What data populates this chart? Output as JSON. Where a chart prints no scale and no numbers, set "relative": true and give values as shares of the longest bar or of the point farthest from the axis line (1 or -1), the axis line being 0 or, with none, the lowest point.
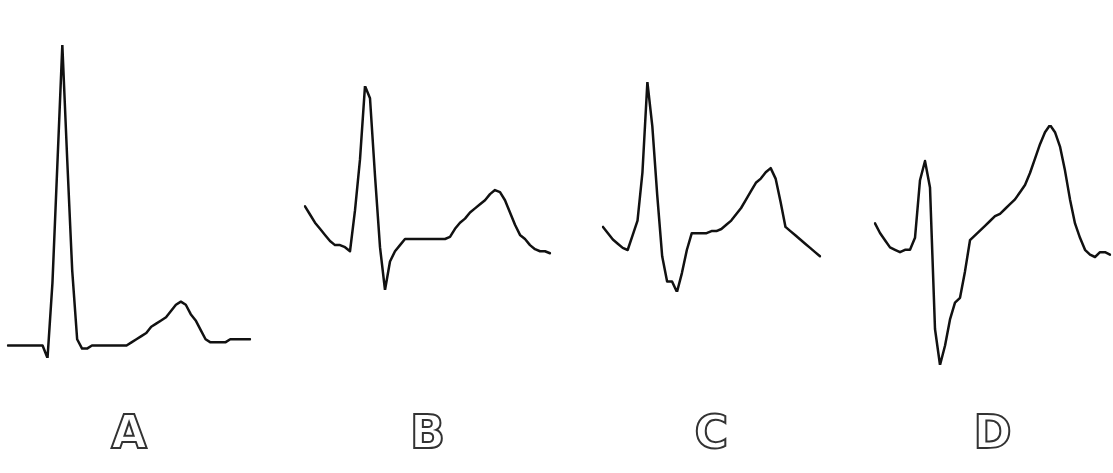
{
  "chart_data": [
    {
      "type": "line",
      "xlabel": "A",
      "relative": true,
      "color": "#111111",
      "categories": [
        null,
        null,
        null,
        null,
        null,
        null,
        null,
        null,
        null,
        null,
        null,
        null,
        null,
        null,
        null,
        null,
        null,
        null,
        null,
        null,
        null,
        null,
        null,
        null,
        null,
        null,
        null,
        null,
        null,
        null,
        null,
        null,
        null,
        null,
        null,
        null,
        null,
        null,
        null,
        null,
        null,
        null,
        null,
        null,
        null,
        null,
        null,
        null,
        null,
        null
      ],
      "values": [
        0.04,
        0.04,
        0.04,
        0.04,
        0.04,
        0.04,
        0.04,
        0.04,
        0,
        0.24,
        0.62,
        1,
        0.63,
        0.28,
        0.06,
        0.03,
        0.03,
        0.04,
        0.04,
        0.04,
        0.04,
        0.04,
        0.04,
        0.04,
        0.04,
        0.05,
        0.06,
        0.07,
        0.08,
        0.1,
        0.11,
        0.12,
        0.13,
        0.15,
        0.17,
        0.18,
        0.17,
        0.14,
        0.12,
        0.09,
        0.06,
        0.05,
        0.05,
        0.05,
        0.05,
        0.06,
        0.06,
        0.06,
        0.06,
        0.06
      ]
    },
    {
      "type": "line",
      "xlabel": "B",
      "relative": true,
      "color": "#111111",
      "categories": [
        null,
        null,
        null,
        null,
        null,
        null,
        null,
        null,
        null,
        null,
        null,
        null,
        null,
        null,
        null,
        null,
        null,
        null,
        null,
        null,
        null,
        null,
        null,
        null,
        null,
        null,
        null,
        null,
        null,
        null,
        null,
        null,
        null,
        null,
        null,
        null,
        null,
        null,
        null,
        null,
        null,
        null,
        null,
        null,
        null,
        null,
        null,
        null,
        null,
        null
      ],
      "values": [
        0.41,
        0.37,
        0.33,
        0.3,
        0.27,
        0.24,
        0.22,
        0.22,
        0.21,
        0.19,
        0.39,
        0.64,
        1,
        0.94,
        0.56,
        0.21,
        0,
        0.14,
        0.19,
        0.22,
        0.25,
        0.25,
        0.25,
        0.25,
        0.25,
        0.25,
        0.25,
        0.25,
        0.25,
        0.26,
        0.3,
        0.33,
        0.35,
        0.38,
        0.4,
        0.42,
        0.44,
        0.47,
        0.49,
        0.48,
        0.44,
        0.38,
        0.32,
        0.27,
        0.25,
        0.22,
        0.2,
        0.19,
        0.19,
        0.18
      ]
    },
    {
      "type": "line",
      "xlabel": "C",
      "relative": true,
      "color": "#111111",
      "categories": [
        null,
        null,
        null,
        null,
        null,
        null,
        null,
        null,
        null,
        null,
        null,
        null,
        null,
        null,
        null,
        null,
        null,
        null,
        null,
        null,
        null,
        null,
        null,
        null,
        null,
        null,
        null,
        null,
        null,
        null,
        null,
        null,
        null,
        null,
        null,
        null,
        null,
        null,
        null,
        null,
        null,
        null,
        null,
        null,
        null
      ],
      "values": [
        0.31,
        0.28,
        0.25,
        0.23,
        0.21,
        0.2,
        0.27,
        0.34,
        0.57,
        1,
        0.79,
        0.46,
        0.17,
        0.05,
        0.05,
        0,
        0.09,
        0.2,
        0.28,
        0.28,
        0.28,
        0.28,
        0.29,
        0.29,
        0.3,
        0.32,
        0.34,
        0.37,
        0.4,
        0.44,
        0.48,
        0.52,
        0.54,
        0.57,
        0.59,
        0.54,
        0.43,
        0.31,
        0.29,
        0.27,
        0.25,
        0.23,
        0.21,
        0.19,
        0.17
      ]
    },
    {
      "type": "line",
      "xlabel": "D",
      "relative": true,
      "color": "#111111",
      "categories": [
        null,
        null,
        null,
        null,
        null,
        null,
        null,
        null,
        null,
        null,
        null,
        null,
        null,
        null,
        null,
        null,
        null,
        null,
        null,
        null,
        null,
        null,
        null,
        null,
        null,
        null,
        null,
        null,
        null,
        null,
        null,
        null,
        null,
        null,
        null,
        null,
        null,
        null,
        null,
        null,
        null,
        null,
        null,
        null,
        null,
        null,
        null,
        null
      ],
      "values": [
        0.59,
        0.55,
        0.52,
        0.49,
        0.48,
        0.47,
        0.48,
        0.48,
        0.53,
        0.77,
        0.85,
        0.74,
        0.15,
        0,
        0.08,
        0.19,
        0.26,
        0.28,
        0.39,
        0.52,
        0.54,
        0.56,
        0.58,
        0.6,
        0.62,
        0.63,
        0.65,
        0.67,
        0.69,
        0.72,
        0.75,
        0.8,
        0.86,
        0.92,
        0.97,
        1,
        0.97,
        0.91,
        0.81,
        0.69,
        0.59,
        0.53,
        0.48,
        0.46,
        0.45,
        0.47,
        0.47,
        0.46
      ]
    }
  ]
}
